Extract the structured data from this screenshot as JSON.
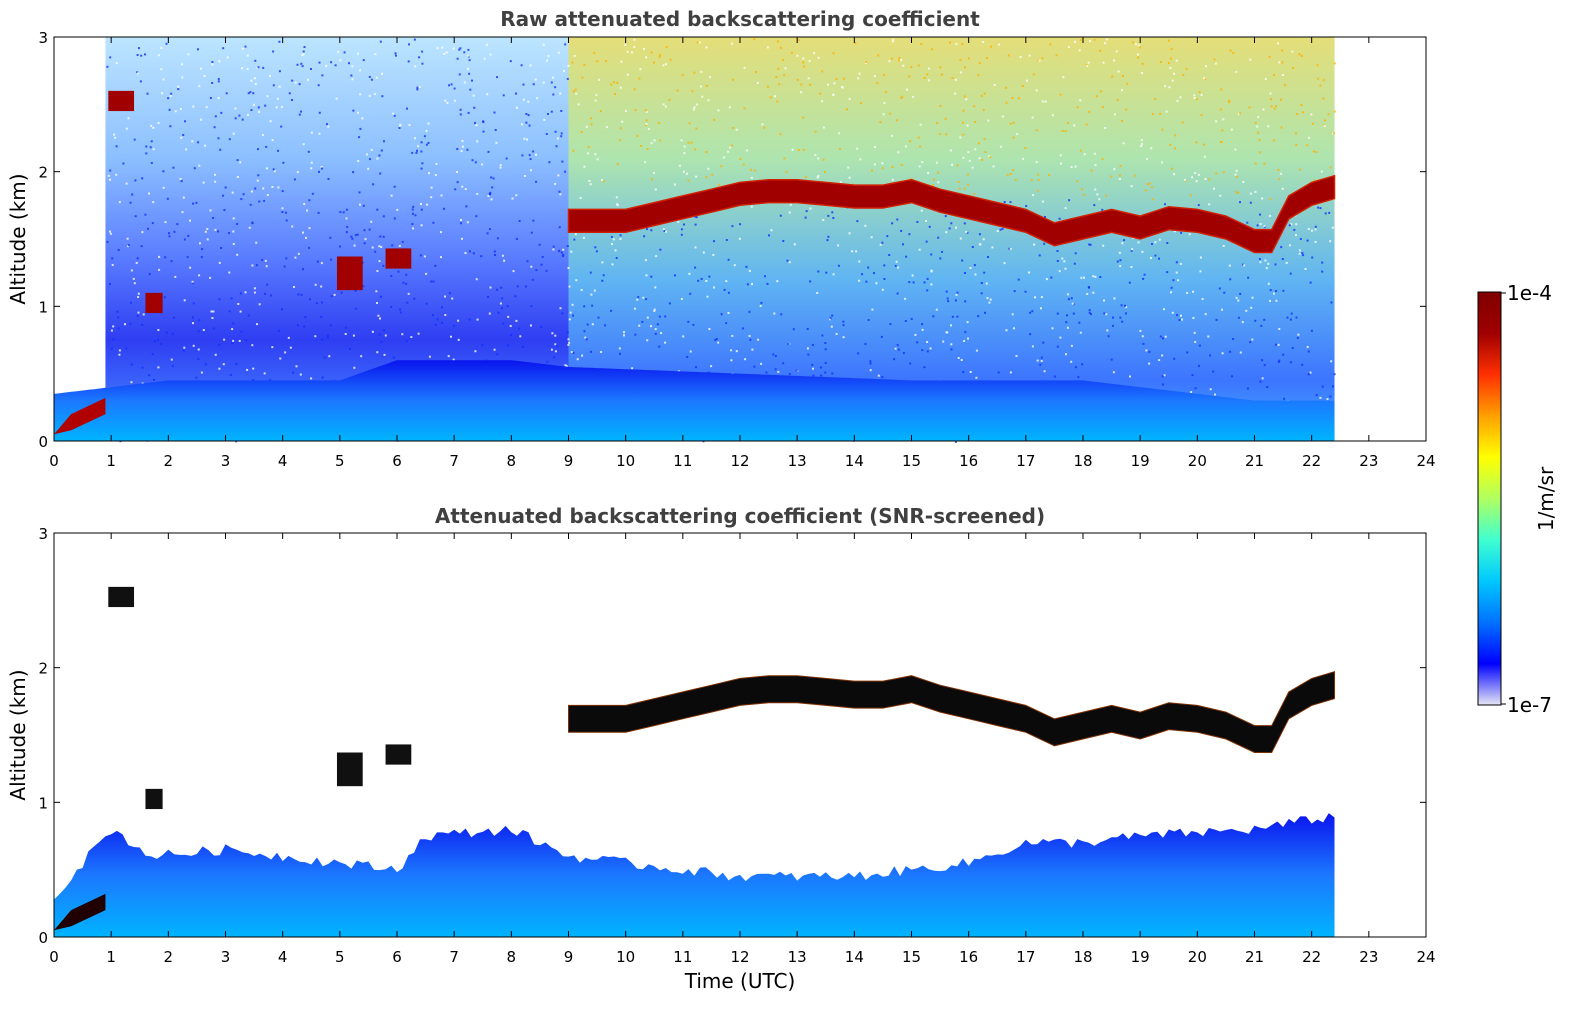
{
  "chart_data": [
    {
      "type": "heatmap",
      "title": "Raw attenuated backscattering coefficient",
      "xlabel": "",
      "ylabel": "Altitude (km)",
      "xlim": [
        0,
        24
      ],
      "ylim": [
        0,
        3
      ],
      "x_ticks": [
        "0",
        "1",
        "2",
        "3",
        "4",
        "5",
        "6",
        "7",
        "8",
        "9",
        "10",
        "11",
        "12",
        "13",
        "14",
        "15",
        "16",
        "17",
        "18",
        "19",
        "20",
        "21",
        "22",
        "23",
        "24"
      ],
      "y_ticks": [
        "0",
        "1",
        "2",
        "3"
      ],
      "data_end_time": 22.4,
      "cloud_layer": {
        "time": [
          9.0,
          9.5,
          10.0,
          10.5,
          11.0,
          11.5,
          12.0,
          12.5,
          13.0,
          13.5,
          14.0,
          14.5,
          15.0,
          15.5,
          16.0,
          16.5,
          17.0,
          17.5,
          18.0,
          18.5,
          19.0,
          19.5,
          20.0,
          20.5,
          21.0,
          21.3,
          21.6,
          22.0,
          22.4
        ],
        "base_km": [
          1.6,
          1.6,
          1.6,
          1.65,
          1.7,
          1.75,
          1.8,
          1.82,
          1.82,
          1.8,
          1.78,
          1.78,
          1.82,
          1.75,
          1.7,
          1.65,
          1.6,
          1.5,
          1.55,
          1.6,
          1.55,
          1.62,
          1.6,
          1.55,
          1.45,
          1.45,
          1.7,
          1.8,
          1.85
        ]
      },
      "boundary_layer_top_km": [
        [
          0,
          0.35
        ],
        [
          1,
          0.4
        ],
        [
          2,
          0.45
        ],
        [
          5,
          0.45
        ],
        [
          6,
          0.6
        ],
        [
          8,
          0.6
        ],
        [
          9,
          0.55
        ],
        [
          12,
          0.5
        ],
        [
          15,
          0.45
        ],
        [
          18,
          0.45
        ],
        [
          21,
          0.3
        ],
        [
          22.4,
          0.3
        ]
      ]
    },
    {
      "type": "heatmap",
      "title": "Attenuated backscattering coefficient (SNR-screened)",
      "xlabel": "Time (UTC)",
      "ylabel": "Altitude (km)",
      "xlim": [
        0,
        24
      ],
      "ylim": [
        0,
        3
      ],
      "x_ticks": [
        "0",
        "1",
        "2",
        "3",
        "4",
        "5",
        "6",
        "7",
        "8",
        "9",
        "10",
        "11",
        "12",
        "13",
        "14",
        "15",
        "16",
        "17",
        "18",
        "19",
        "20",
        "21",
        "22",
        "23",
        "24"
      ],
      "y_ticks": [
        "0",
        "1",
        "2",
        "3"
      ],
      "data_end_time": 22.4,
      "screened_signal_top_km": [
        [
          0,
          0.3
        ],
        [
          1,
          0.8
        ],
        [
          1.7,
          0.6
        ],
        [
          3,
          0.65
        ],
        [
          4,
          0.6
        ],
        [
          5,
          0.55
        ],
        [
          6,
          0.5
        ],
        [
          6.5,
          0.75
        ],
        [
          8,
          0.8
        ],
        [
          9,
          0.6
        ],
        [
          10,
          0.55
        ],
        [
          12,
          0.45
        ],
        [
          14,
          0.45
        ],
        [
          16,
          0.55
        ],
        [
          17,
          0.7
        ],
        [
          18,
          0.7
        ],
        [
          19,
          0.75
        ],
        [
          21,
          0.8
        ],
        [
          22.4,
          0.9
        ]
      ]
    }
  ],
  "colorbar": {
    "max_label": "1e-4",
    "min_label": "1e-7",
    "unit_label": "1/m/sr",
    "colors": [
      "#e6e6f5",
      "#0000ff",
      "#0072ff",
      "#00c8ff",
      "#40ffd0",
      "#b0ff60",
      "#ffff00",
      "#ffa000",
      "#ff3000",
      "#a00000",
      "#800000"
    ]
  }
}
